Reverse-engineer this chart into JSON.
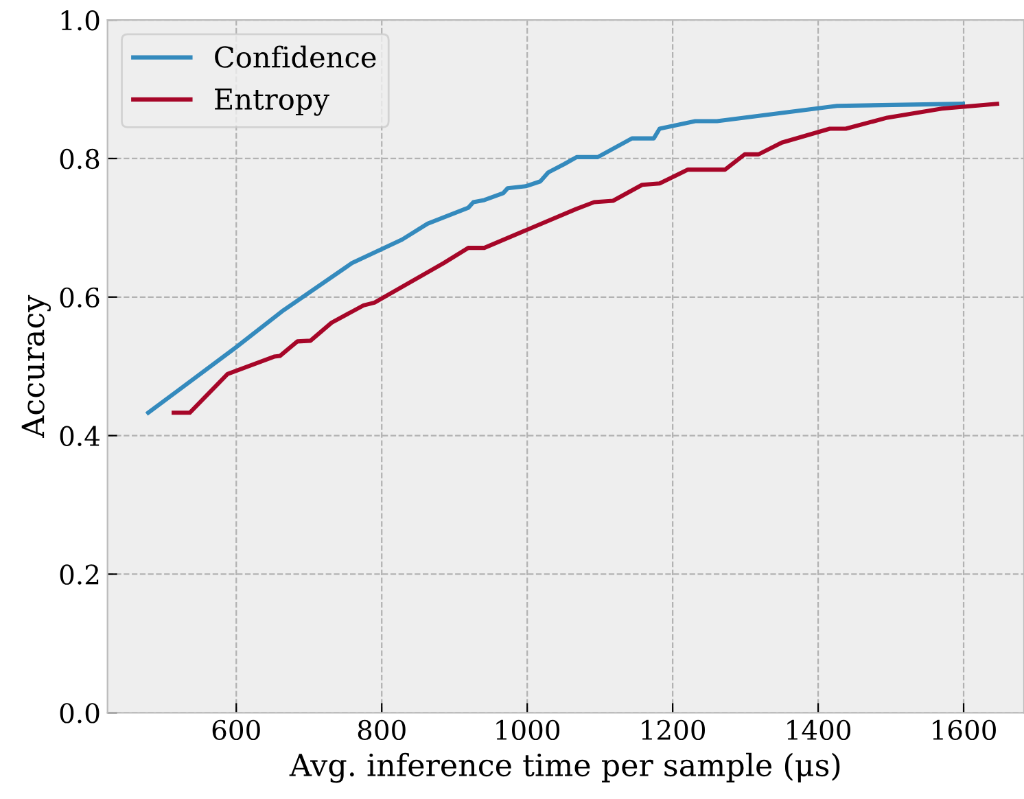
{
  "chart_data": {
    "type": "line",
    "xlabel": "Avg. inference time per sample (μs)",
    "ylabel": "Accuracy",
    "xlim": [
      423,
      1683
    ],
    "ylim": [
      0,
      1
    ],
    "xticks": [
      600,
      800,
      1000,
      1200,
      1400,
      1600
    ],
    "yticks": [
      {
        "value": 0,
        "label": "0.0"
      },
      {
        "value": 0.2,
        "label": "0.2"
      },
      {
        "value": 0.4,
        "label": "0.4"
      },
      {
        "value": 0.6,
        "label": "0.6"
      },
      {
        "value": 0.8,
        "label": "0.8"
      },
      {
        "value": 1,
        "label": "1.0"
      }
    ],
    "grid": true,
    "legend": "top left",
    "marker": "none",
    "line_style": "solid",
    "series": [
      {
        "name": "Confidence",
        "color": "#348abd",
        "x": [
          479,
          599,
          665,
          759,
          828,
          863,
          919,
          926,
          941,
          967,
          973,
          998,
          1018,
          1029,
          1051,
          1068,
          1097,
          1144,
          1174,
          1182,
          1231,
          1261,
          1426,
          1599
        ],
        "values": [
          0.433,
          0.527,
          0.581,
          0.649,
          0.683,
          0.706,
          0.729,
          0.737,
          0.74,
          0.75,
          0.757,
          0.76,
          0.767,
          0.78,
          0.792,
          0.802,
          0.802,
          0.829,
          0.829,
          0.843,
          0.854,
          0.854,
          0.876,
          0.879
        ]
      },
      {
        "name": "Entropy",
        "color": "#a60628",
        "x": [
          514,
          536,
          588,
          652,
          660,
          684,
          702,
          731,
          775,
          790,
          885,
          919,
          941,
          1067,
          1092,
          1118,
          1158,
          1182,
          1221,
          1272,
          1299,
          1318,
          1350,
          1416,
          1438,
          1495,
          1570,
          1646
        ],
        "values": [
          0.433,
          0.433,
          0.489,
          0.514,
          0.515,
          0.536,
          0.537,
          0.563,
          0.588,
          0.592,
          0.649,
          0.671,
          0.671,
          0.727,
          0.737,
          0.739,
          0.762,
          0.764,
          0.784,
          0.784,
          0.806,
          0.806,
          0.823,
          0.843,
          0.843,
          0.859,
          0.872,
          0.879
        ]
      }
    ]
  }
}
